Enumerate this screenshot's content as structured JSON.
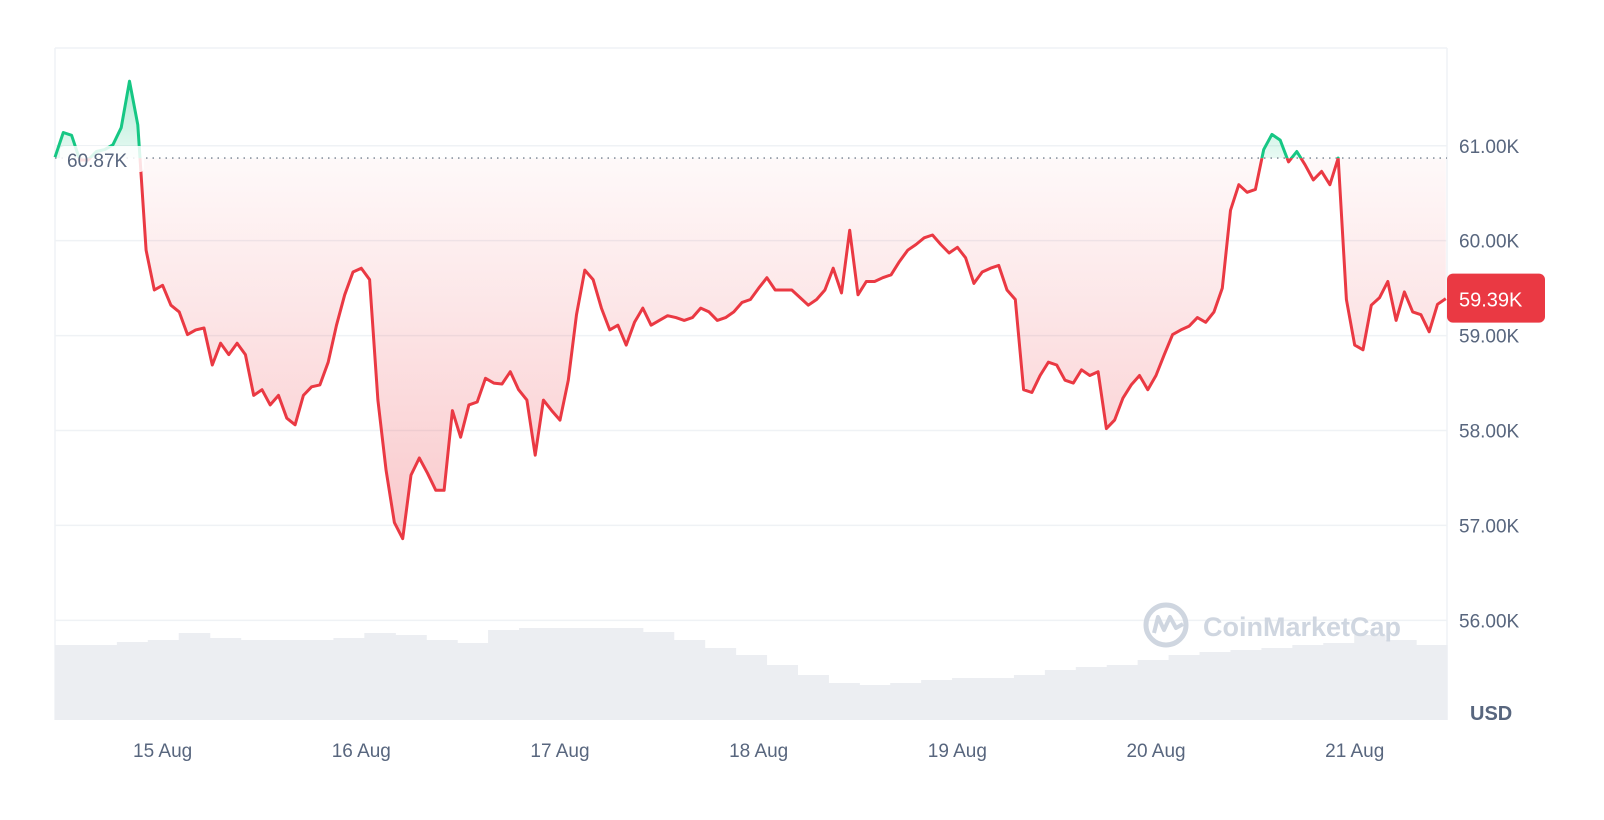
{
  "chart_data": {
    "type": "line",
    "title": "",
    "xlabel": "",
    "ylabel": "",
    "currency_label": "USD",
    "ylim": [
      54950,
      62030
    ],
    "y_ticks": [
      {
        "value": 61000,
        "label": "61.00K"
      },
      {
        "value": 60000,
        "label": "60.00K"
      },
      {
        "value": 59000,
        "label": "59.00K"
      },
      {
        "value": 58000,
        "label": "58.00K"
      },
      {
        "value": 57000,
        "label": "57.00K"
      },
      {
        "value": 56000,
        "label": "56.00K"
      }
    ],
    "x_ticks": [
      "15 Aug",
      "16 Aug",
      "17 Aug",
      "18 Aug",
      "19 Aug",
      "20 Aug",
      "21 Aug"
    ],
    "grid": true,
    "reference_line": {
      "value": 60870,
      "label": "60.87K"
    },
    "current_price": {
      "value": 59390,
      "label": "59.39K"
    },
    "colors": {
      "up": "#16c784",
      "down": "#ea3943",
      "grid": "#eff2f5",
      "volume": "#eceef2",
      "text": "#58667e"
    },
    "series": [
      {
        "day": "14 Aug",
        "start_hour": 11,
        "values": [
          60880,
          61140,
          61110,
          60850,
          60850,
          60940,
          60960,
          61010,
          61190,
          61680,
          61220,
          59900,
          59480
        ]
      },
      {
        "day": "15 Aug",
        "start_hour": 0,
        "values": [
          59530,
          59320,
          59250,
          59010,
          59060,
          59080,
          58690,
          58920,
          58800,
          58920,
          58800,
          58370,
          58430,
          58270,
          58370,
          58130,
          58060,
          58370,
          58460,
          58480,
          58720,
          59110,
          59430,
          59670
        ]
      },
      {
        "day": "16 Aug",
        "start_hour": 0,
        "values": [
          59710,
          59590,
          58320,
          57580,
          57030,
          56860,
          57530,
          57710,
          57550,
          57370,
          57370,
          58210,
          57930,
          58270,
          58300,
          58550,
          58500,
          58490,
          58620,
          58430,
          58320,
          57740,
          58320,
          58210
        ]
      },
      {
        "day": "17 Aug",
        "start_hour": 0,
        "values": [
          58110,
          58530,
          59220,
          59690,
          59590,
          59290,
          59060,
          59110,
          58900,
          59140,
          59290,
          59110,
          59160,
          59210,
          59190,
          59160,
          59190,
          59290,
          59250,
          59160,
          59190,
          59250,
          59350,
          59380
        ]
      },
      {
        "day": "18 Aug",
        "start_hour": 0,
        "values": [
          59500,
          59610,
          59480,
          59480,
          59480,
          59400,
          59320,
          59380,
          59480,
          59710,
          59450,
          60110,
          59430,
          59570,
          59570,
          59610,
          59640,
          59780,
          59900,
          59960,
          60030,
          60060,
          59960,
          59870
        ]
      },
      {
        "day": "19 Aug",
        "start_hour": 0,
        "values": [
          59930,
          59820,
          59550,
          59670,
          59710,
          59740,
          59480,
          59380,
          58430,
          58400,
          58580,
          58720,
          58690,
          58530,
          58500,
          58640,
          58580,
          58620,
          58020,
          58110,
          58340,
          58480,
          58580,
          58430
        ]
      },
      {
        "day": "20 Aug",
        "start_hour": 0,
        "values": [
          58580,
          58800,
          59010,
          59060,
          59100,
          59190,
          59140,
          59250,
          59500,
          60320,
          60590,
          60510,
          60540,
          60960,
          61120,
          61060,
          60830,
          60940,
          60800,
          60640,
          60730,
          60590,
          60870,
          59380
        ]
      },
      {
        "day": "21 Aug",
        "start_hour": 0,
        "values": [
          58900,
          58850,
          59320,
          59400,
          59570,
          59160,
          59460,
          59250,
          59220,
          59040,
          59330,
          59390
        ]
      }
    ],
    "volume_relative": [
      75,
      75,
      78,
      80,
      87,
      82,
      80,
      80,
      80,
      82,
      87,
      85,
      80,
      77,
      90,
      92,
      92,
      92,
      92,
      88,
      80,
      72,
      65,
      55,
      45,
      37,
      35,
      37,
      40,
      42,
      42,
      45,
      50,
      53,
      55,
      60,
      65,
      68,
      70,
      72,
      75,
      77,
      85,
      80,
      75
    ]
  },
  "watermark": {
    "text": "CoinMarketCap"
  }
}
